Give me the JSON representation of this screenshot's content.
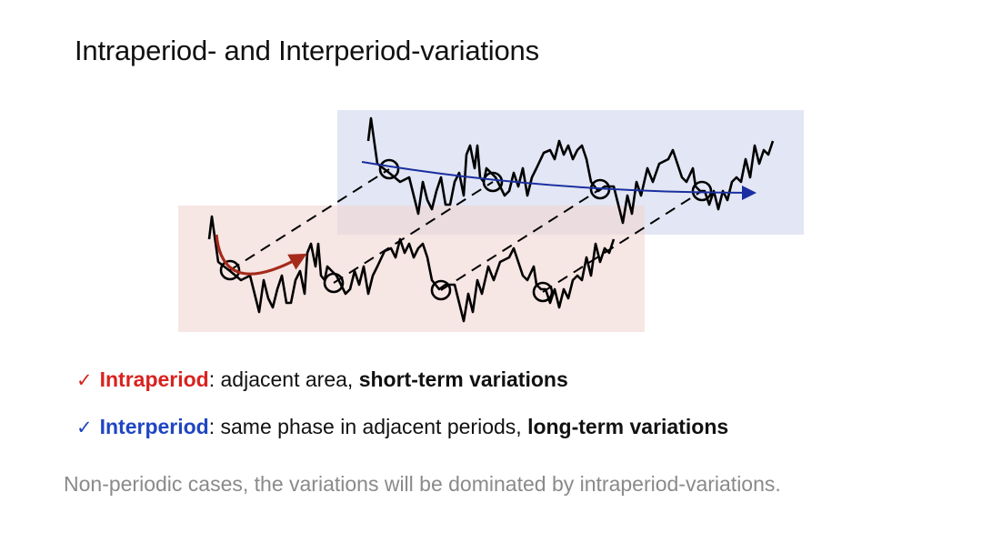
{
  "title": "Intraperiod- and Interperiod-variations",
  "diagram": {
    "colors": {
      "intra_box": "#f5e4e2",
      "inter_box": "#e3e6f4",
      "intra_arrow": "#a52a1a",
      "inter_arrow": "#1a2fa0",
      "series": "#000000"
    }
  },
  "bullets": [
    {
      "icon": "check-icon",
      "color": "#d8231f",
      "term": "Intraperiod",
      "text": ": adjacent area, ",
      "emphasis": "short-term variations"
    },
    {
      "icon": "check-icon",
      "color": "#1f45c4",
      "term": "Interperiod",
      "text": ": same phase in adjacent periods, ",
      "emphasis": "long-term variations"
    }
  ],
  "check_glyph": "✓",
  "note": "Non-periodic cases, the variations will be dominated by intraperiod-variations."
}
